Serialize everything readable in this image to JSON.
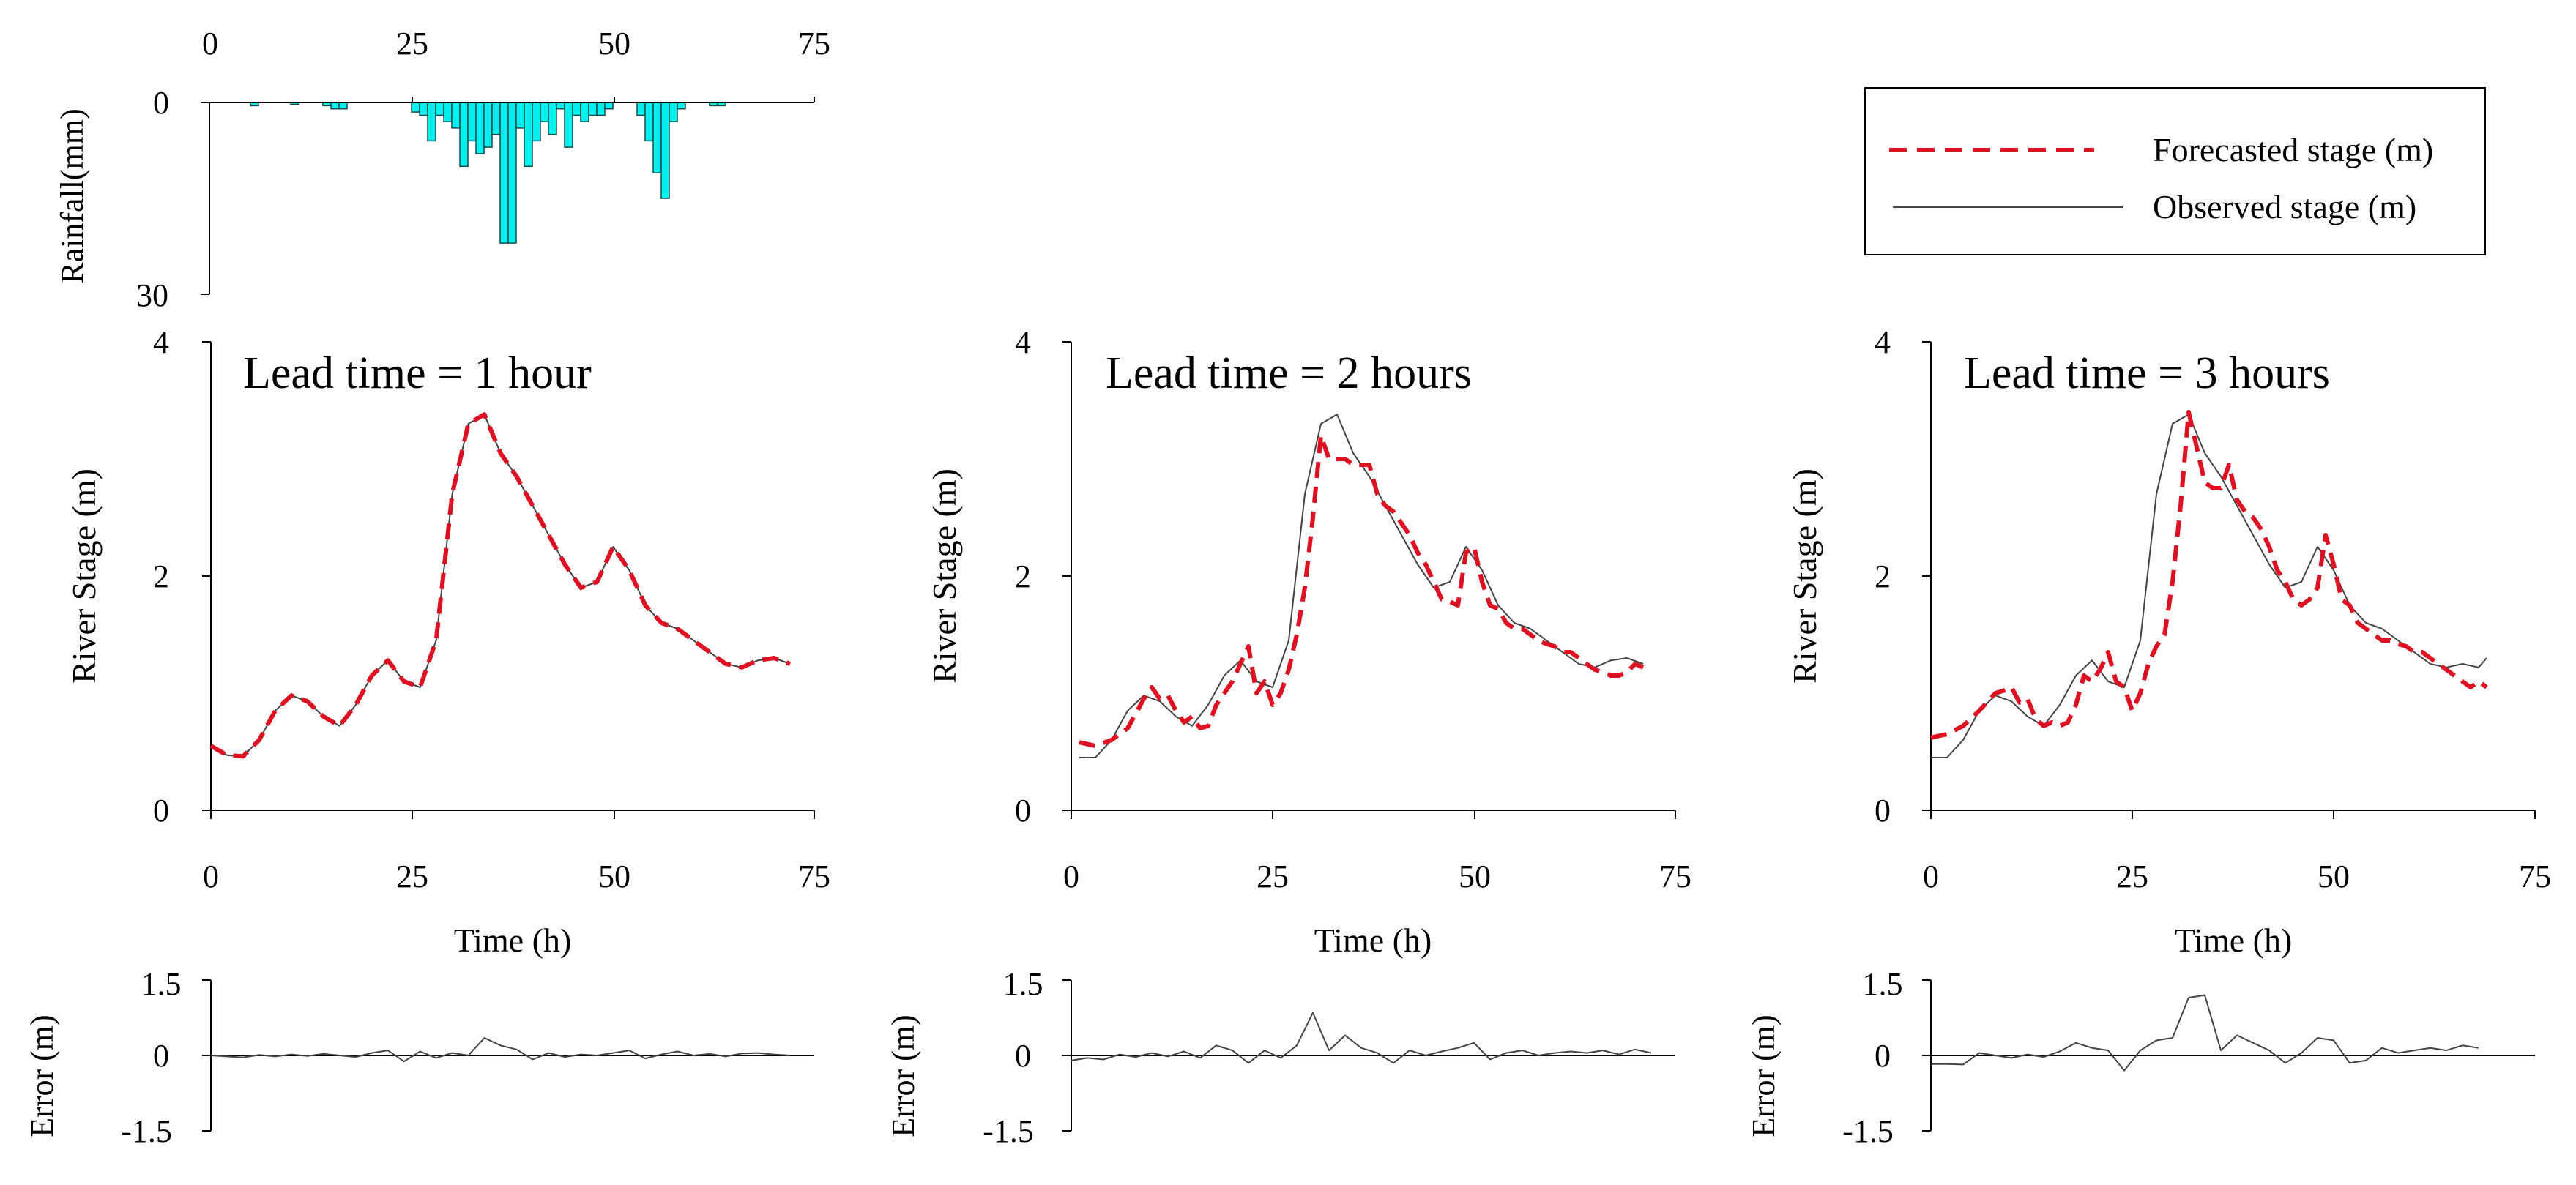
{
  "colors": {
    "forecast": "#dd1122",
    "observed": "#444444",
    "rain_fill": "#00f0f0",
    "rain_stroke": "#1a4a4a",
    "axis": "#000000"
  },
  "legend": {
    "forecast_label": "Forecasted stage (m)",
    "observed_label": "Observed stage (m)"
  },
  "chart_data": [
    {
      "type": "bar",
      "id": "rainfall",
      "title": "",
      "xlabel": "",
      "ylabel": "Rainfall(mm)",
      "xlim": [
        0,
        75
      ],
      "ylim": [
        0,
        30
      ],
      "y_inverted": true,
      "x_axis_position": "top",
      "xticks": [
        "0",
        "25",
        "50",
        "75"
      ],
      "yticks": [
        "0",
        "30"
      ],
      "values": [
        0,
        0,
        0,
        0,
        0,
        0.5,
        0,
        0,
        0,
        0,
        0.3,
        0,
        0,
        0,
        0.5,
        1,
        1,
        0,
        0,
        0,
        0,
        0,
        0,
        0,
        0,
        1.5,
        2,
        6,
        2,
        3,
        4,
        10,
        6,
        8,
        7,
        5,
        22,
        22,
        4,
        10,
        6,
        3,
        5,
        1,
        7,
        2,
        3,
        2,
        2,
        1,
        0,
        0,
        0,
        2,
        6,
        11,
        15,
        3,
        1,
        0,
        0,
        0,
        0.5,
        0.5
      ]
    },
    {
      "type": "line",
      "id": "stage_lead1",
      "title": "Lead time = 1 hour",
      "xlabel": "Time (h)",
      "ylabel": "River Stage (m)",
      "xlim": [
        0,
        75
      ],
      "ylim": [
        0,
        4
      ],
      "xticks": [
        "0",
        "25",
        "50",
        "75"
      ],
      "yticks": [
        "0",
        "2",
        "4"
      ],
      "series": [
        {
          "name": "Observed stage (m)",
          "style": "solid",
          "x": [
            0,
            2,
            4,
            6,
            8,
            10,
            12,
            14,
            16,
            18,
            20,
            22,
            24,
            26,
            28,
            30,
            32,
            34,
            36,
            38,
            40,
            42,
            44,
            46,
            48,
            50,
            52,
            54,
            56,
            58,
            60,
            62,
            64,
            66,
            68,
            70,
            72
          ],
          "y": [
            0.55,
            0.47,
            0.46,
            0.6,
            0.85,
            0.98,
            0.93,
            0.8,
            0.72,
            0.9,
            1.15,
            1.28,
            1.1,
            1.05,
            1.45,
            2.7,
            3.3,
            3.38,
            3.05,
            2.85,
            2.6,
            2.35,
            2.1,
            1.9,
            1.95,
            2.25,
            2.05,
            1.75,
            1.6,
            1.55,
            1.45,
            1.35,
            1.25,
            1.22,
            1.28,
            1.3,
            1.25
          ]
        },
        {
          "name": "Forecasted stage (m)",
          "style": "dashed",
          "x": [
            0,
            2,
            4,
            6,
            8,
            10,
            12,
            14,
            16,
            18,
            20,
            22,
            24,
            26,
            28,
            30,
            32,
            34,
            36,
            38,
            40,
            42,
            44,
            46,
            48,
            50,
            52,
            54,
            56,
            58,
            60,
            62,
            64,
            66,
            68,
            70,
            72
          ],
          "y": [
            0.55,
            0.47,
            0.46,
            0.6,
            0.85,
            0.98,
            0.93,
            0.8,
            0.72,
            0.9,
            1.15,
            1.28,
            1.1,
            1.05,
            1.45,
            2.7,
            3.3,
            3.38,
            3.05,
            2.85,
            2.6,
            2.35,
            2.1,
            1.9,
            1.95,
            2.25,
            2.05,
            1.75,
            1.6,
            1.55,
            1.45,
            1.35,
            1.25,
            1.22,
            1.28,
            1.3,
            1.25
          ]
        }
      ]
    },
    {
      "type": "line",
      "id": "stage_lead2",
      "title": "Lead time = 2 hours",
      "xlabel": "Time (h)",
      "ylabel": "River Stage (m)",
      "xlim": [
        0,
        75
      ],
      "ylim": [
        0,
        4
      ],
      "xticks": [
        "0",
        "25",
        "50",
        "75"
      ],
      "yticks": [
        "0",
        "2",
        "4"
      ],
      "series": [
        {
          "name": "Observed stage (m)",
          "style": "solid",
          "x": [
            1,
            3,
            5,
            7,
            9,
            11,
            13,
            15,
            17,
            19,
            21,
            23,
            25,
            27,
            29,
            31,
            33,
            35,
            37,
            39,
            41,
            43,
            45,
            47,
            49,
            51,
            53,
            55,
            57,
            59,
            61,
            63,
            65,
            67,
            69,
            71
          ],
          "y": [
            0.45,
            0.45,
            0.6,
            0.85,
            0.98,
            0.93,
            0.8,
            0.72,
            0.9,
            1.15,
            1.28,
            1.1,
            1.05,
            1.45,
            2.7,
            3.3,
            3.38,
            3.05,
            2.85,
            2.6,
            2.35,
            2.1,
            1.9,
            1.95,
            2.25,
            2.05,
            1.75,
            1.6,
            1.55,
            1.45,
            1.35,
            1.25,
            1.22,
            1.28,
            1.3,
            1.25
          ]
        },
        {
          "name": "Forecasted stage (m)",
          "style": "dashed",
          "x": [
            1,
            3,
            5,
            7,
            9,
            10,
            11,
            12,
            13,
            14,
            15,
            16,
            17,
            18,
            19,
            20,
            21,
            22,
            23,
            24,
            25,
            26,
            27,
            28,
            29,
            30,
            31,
            32,
            33,
            34,
            35,
            36,
            37,
            38,
            39,
            40,
            41,
            42,
            43,
            44,
            45,
            46,
            47,
            48,
            49,
            50,
            51,
            52,
            53,
            54,
            55,
            56,
            57,
            58,
            59,
            60,
            61,
            62,
            63,
            64,
            65,
            66,
            67,
            68,
            69,
            70,
            71
          ],
          "y": [
            0.58,
            0.55,
            0.6,
            0.7,
            0.95,
            1.05,
            0.95,
            0.98,
            0.85,
            0.75,
            0.8,
            0.7,
            0.72,
            0.9,
            1.0,
            1.1,
            1.25,
            1.4,
            1.0,
            1.1,
            0.9,
            1.0,
            1.2,
            1.5,
            1.9,
            2.5,
            3.2,
            3.0,
            3.0,
            3.0,
            2.95,
            2.95,
            2.95,
            2.7,
            2.6,
            2.55,
            2.45,
            2.35,
            2.2,
            2.1,
            1.95,
            1.8,
            1.78,
            1.75,
            2.2,
            2.25,
            1.95,
            1.75,
            1.72,
            1.6,
            1.55,
            1.55,
            1.5,
            1.45,
            1.42,
            1.4,
            1.35,
            1.35,
            1.3,
            1.25,
            1.2,
            1.18,
            1.15,
            1.15,
            1.18,
            1.25,
            1.22
          ]
        }
      ]
    },
    {
      "type": "line",
      "id": "stage_lead3",
      "title": "Lead time = 3 hours",
      "xlabel": "Time (h)",
      "ylabel": "River Stage (m)",
      "xlim": [
        0,
        75
      ],
      "ylim": [
        0,
        4
      ],
      "xticks": [
        "0",
        "25",
        "50",
        "75"
      ],
      "yticks": [
        "0",
        "2",
        "4"
      ],
      "series": [
        {
          "name": "Observed stage (m)",
          "style": "solid",
          "x": [
            0,
            2,
            4,
            6,
            8,
            10,
            12,
            14,
            16,
            18,
            20,
            22,
            24,
            26,
            28,
            30,
            32,
            34,
            36,
            38,
            40,
            42,
            44,
            46,
            48,
            50,
            52,
            54,
            56,
            58,
            60,
            62,
            64,
            66,
            68,
            69
          ],
          "y": [
            0.45,
            0.45,
            0.6,
            0.85,
            0.98,
            0.93,
            0.8,
            0.72,
            0.9,
            1.15,
            1.28,
            1.1,
            1.05,
            1.45,
            2.7,
            3.3,
            3.38,
            3.05,
            2.85,
            2.6,
            2.35,
            2.1,
            1.9,
            1.95,
            2.25,
            2.05,
            1.75,
            1.6,
            1.55,
            1.45,
            1.35,
            1.25,
            1.22,
            1.25,
            1.22,
            1.3
          ]
        },
        {
          "name": "Forecasted stage (m)",
          "style": "dashed",
          "x": [
            0,
            2,
            4,
            6,
            8,
            9,
            10,
            11,
            12,
            13,
            14,
            15,
            16,
            17,
            18,
            19,
            20,
            21,
            22,
            23,
            24,
            25,
            26,
            27,
            28,
            29,
            30,
            31,
            32,
            33,
            34,
            35,
            36,
            37,
            38,
            39,
            40,
            41,
            42,
            43,
            44,
            45,
            46,
            47,
            48,
            49,
            50,
            51,
            52,
            53,
            54,
            55,
            56,
            57,
            58,
            59,
            60,
            61,
            62,
            63,
            64,
            65,
            66,
            67,
            68,
            69
          ],
          "y": [
            0.62,
            0.65,
            0.72,
            0.85,
            1.0,
            1.02,
            1.05,
            0.92,
            0.95,
            0.78,
            0.72,
            0.75,
            0.72,
            0.75,
            0.9,
            1.15,
            1.1,
            1.2,
            1.35,
            1.1,
            1.05,
            0.85,
            1.0,
            1.25,
            1.4,
            1.5,
            1.95,
            2.6,
            3.4,
            3.1,
            2.8,
            2.75,
            2.75,
            2.95,
            2.65,
            2.55,
            2.5,
            2.4,
            2.25,
            2.05,
            1.95,
            1.8,
            1.75,
            1.8,
            1.9,
            2.35,
            2.1,
            1.8,
            1.75,
            1.6,
            1.55,
            1.5,
            1.45,
            1.45,
            1.42,
            1.4,
            1.35,
            1.35,
            1.3,
            1.25,
            1.2,
            1.15,
            1.1,
            1.05,
            1.1,
            1.05
          ]
        }
      ]
    },
    {
      "type": "line",
      "id": "error_lead1",
      "title": "",
      "xlabel": "",
      "ylabel": "Error (m)",
      "xlim": [
        0,
        75
      ],
      "ylim": [
        -1.5,
        1.5
      ],
      "yticks": [
        "1.5",
        "0",
        "-1.5"
      ],
      "series": [
        {
          "name": "Error (m)",
          "style": "solid",
          "x": [
            0,
            2,
            4,
            6,
            8,
            10,
            12,
            14,
            16,
            18,
            20,
            22,
            24,
            26,
            28,
            30,
            32,
            34,
            36,
            38,
            40,
            42,
            44,
            46,
            48,
            50,
            52,
            54,
            56,
            58,
            60,
            62,
            64,
            66,
            68,
            70,
            72
          ],
          "y": [
            0.0,
            -0.02,
            -0.04,
            0.01,
            -0.02,
            0.02,
            -0.01,
            0.03,
            0.0,
            -0.03,
            0.05,
            0.1,
            -0.12,
            0.08,
            -0.05,
            0.05,
            0.0,
            0.35,
            0.2,
            0.12,
            -0.08,
            0.05,
            -0.03,
            0.02,
            0.0,
            0.05,
            0.1,
            -0.06,
            0.02,
            0.08,
            0.0,
            0.03,
            -0.02,
            0.04,
            0.05,
            0.02,
            0.0
          ]
        }
      ]
    },
    {
      "type": "line",
      "id": "error_lead2",
      "title": "",
      "xlabel": "",
      "ylabel": "Error (m)",
      "xlim": [
        0,
        75
      ],
      "ylim": [
        -1.5,
        1.5
      ],
      "yticks": [
        "1.5",
        "0",
        "-1.5"
      ],
      "series": [
        {
          "name": "Error (m)",
          "style": "solid",
          "x": [
            0,
            2,
            4,
            6,
            8,
            10,
            12,
            14,
            16,
            18,
            20,
            22,
            24,
            26,
            28,
            30,
            32,
            34,
            36,
            38,
            40,
            42,
            44,
            46,
            48,
            50,
            52,
            54,
            56,
            58,
            60,
            62,
            64,
            66,
            68,
            70,
            72
          ],
          "y": [
            -0.1,
            -0.05,
            -0.08,
            0.02,
            -0.03,
            0.05,
            -0.02,
            0.08,
            -0.05,
            0.2,
            0.1,
            -0.15,
            0.1,
            -0.05,
            0.2,
            0.85,
            0.1,
            0.4,
            0.15,
            0.05,
            -0.15,
            0.1,
            0.0,
            0.08,
            0.15,
            0.25,
            -0.08,
            0.05,
            0.1,
            0.0,
            0.05,
            0.08,
            0.05,
            0.1,
            0.02,
            0.12,
            0.05
          ]
        }
      ]
    },
    {
      "type": "line",
      "id": "error_lead3",
      "title": "",
      "xlabel": "",
      "ylabel": "Error (m)",
      "xlim": [
        0,
        75
      ],
      "ylim": [
        -1.5,
        1.5
      ],
      "yticks": [
        "1.5",
        "0",
        "-1.5"
      ],
      "series": [
        {
          "name": "Error (m)",
          "style": "solid",
          "x": [
            0,
            2,
            4,
            6,
            8,
            10,
            12,
            14,
            16,
            18,
            20,
            22,
            24,
            26,
            28,
            30,
            32,
            34,
            36,
            38,
            40,
            42,
            44,
            46,
            48,
            50,
            52,
            54,
            56,
            58,
            60,
            62,
            64,
            66,
            68
          ],
          "y": [
            -0.17,
            -0.17,
            -0.18,
            0.05,
            0.0,
            -0.05,
            0.02,
            -0.03,
            0.08,
            0.25,
            0.15,
            0.1,
            -0.3,
            0.1,
            0.3,
            0.35,
            1.15,
            1.2,
            0.1,
            0.4,
            0.25,
            0.1,
            -0.15,
            0.05,
            0.35,
            0.3,
            -0.15,
            -0.1,
            0.15,
            0.05,
            0.1,
            0.15,
            0.1,
            0.2,
            0.15
          ]
        }
      ]
    }
  ]
}
